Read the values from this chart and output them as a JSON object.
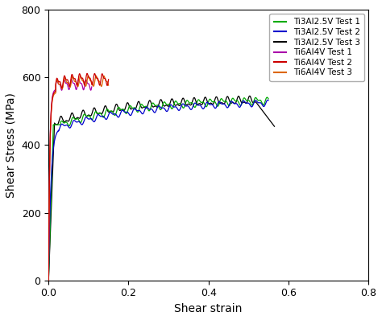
{
  "title": "",
  "xlabel": "Shear strain",
  "ylabel": "Shear Stress (MPa)",
  "xlim": [
    0,
    0.8
  ],
  "ylim": [
    0,
    800
  ],
  "xticks": [
    0,
    0.2,
    0.4,
    0.6,
    0.8
  ],
  "yticks": [
    0,
    200,
    400,
    600,
    800
  ],
  "legend_entries": [
    "Ti3Al2.5V Test 1",
    "Ti3Al2.5V Test 2",
    "Ti3Al2.5V Test 3",
    "Ti6Al4V Test 1",
    "Ti6Al4V Test 2",
    "Ti6Al4V Test 3"
  ],
  "colors": {
    "Ti3Al2.5V Test 1": "#00aa00",
    "Ti3Al2.5V Test 2": "#0000cc",
    "Ti3Al2.5V Test 3": "#000000",
    "Ti6Al4V Test 1": "#aa00aa",
    "Ti6Al4V Test 2": "#cc0000",
    "Ti6Al4V Test 3": "#dd6600"
  },
  "background_color": "#ffffff"
}
